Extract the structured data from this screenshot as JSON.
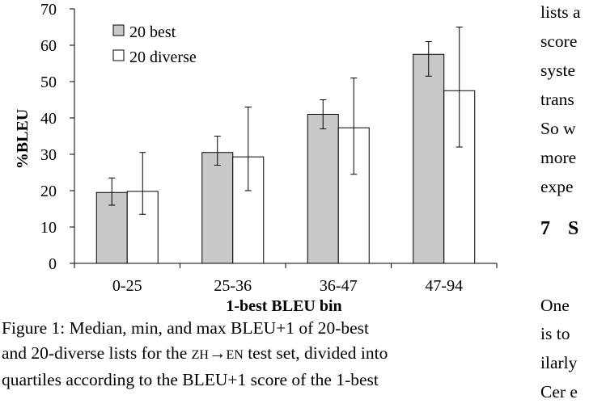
{
  "chart_data": {
    "type": "bar",
    "categories": [
      "0-25",
      "25-36",
      "36-47",
      "47-94"
    ],
    "series": [
      {
        "name": "20 best",
        "values": [
          19.5,
          30.5,
          41,
          57.5
        ],
        "min": [
          16,
          27,
          37,
          51.5
        ],
        "max": [
          23.5,
          35,
          45,
          61
        ],
        "color": "#c8c8c8"
      },
      {
        "name": "20 diverse",
        "values": [
          19.8,
          29.3,
          37.3,
          47.5
        ],
        "min": [
          13.5,
          20,
          24.5,
          32
        ],
        "max": [
          30.5,
          43,
          51,
          65
        ],
        "color": "#ffffff"
      }
    ],
    "xlabel": "1-best BLEU bin",
    "ylabel": "%BLEU",
    "ylim": [
      0,
      70
    ],
    "yticks": [
      0,
      10,
      20,
      30,
      40,
      50,
      60,
      70
    ],
    "legend_position": "top-left",
    "grid": false,
    "error_bars": "min-max"
  },
  "caption": {
    "line1": "Figure 1:  Median, min, and max BLEU+1 of 20-best",
    "line2a": "and 20-diverse lists for the ",
    "zh": "ZH",
    "arrow": "→",
    "en": "EN",
    "line2b": " test set, divided into",
    "line3": "quartiles according to the BLEU+1 score of the 1-best"
  },
  "right_column": {
    "lines": [
      "lists a",
      "score",
      "syste",
      "trans",
      "So w",
      "more",
      "expe"
    ],
    "heading_num": "7",
    "heading_text": "S",
    "lines2": [
      "One",
      "is to",
      "ilarly",
      "Cer e"
    ]
  }
}
